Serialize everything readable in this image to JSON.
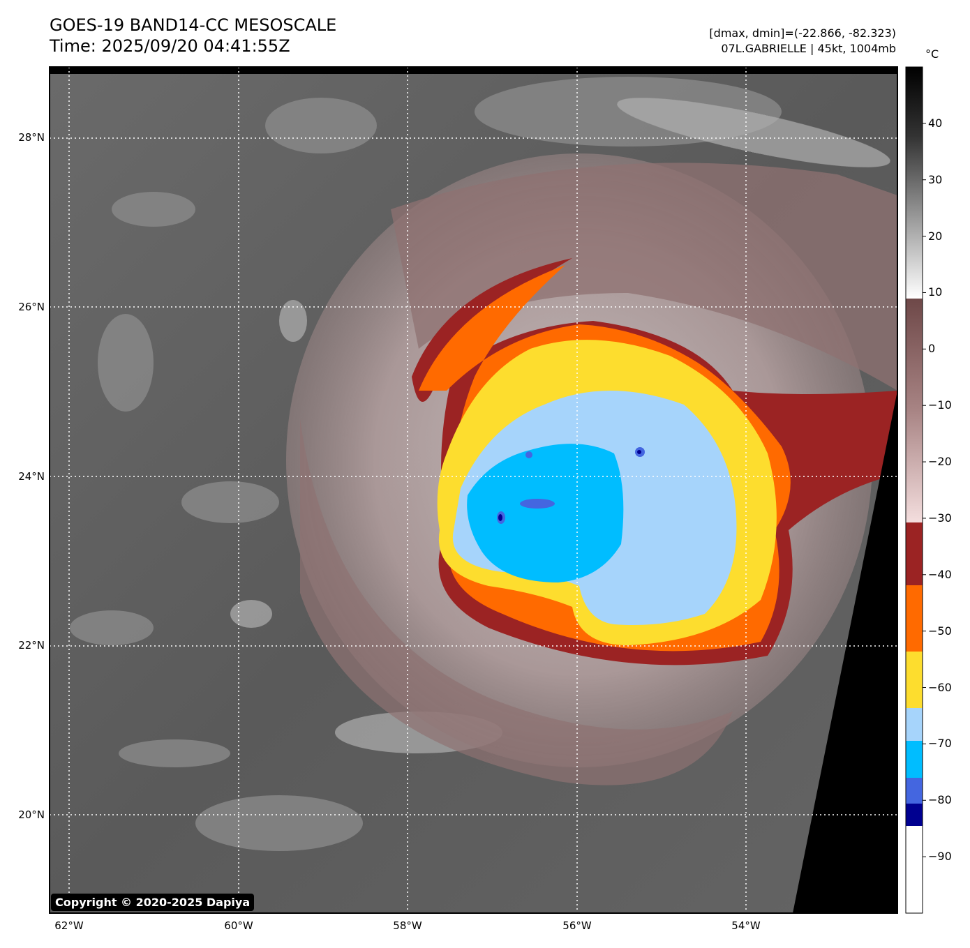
{
  "header": {
    "title_line1": "GOES-19 BAND14-CC MESOSCALE",
    "title_line2": "Time: 2025/09/20 04:41:55Z",
    "info_line1": "[dmax, dmin]=(-22.866, -82.323)",
    "info_line2": "07L.GABRIELLE | 45kt, 1004mb"
  },
  "map": {
    "lat_labels": [
      "28°N",
      "26°N",
      "24°N",
      "22°N",
      "20°N"
    ],
    "lon_labels": [
      "62°W",
      "60°W",
      "58°W",
      "56°W",
      "54°W"
    ],
    "lat_values": [
      28,
      26,
      24,
      22,
      20
    ],
    "lon_values": [
      -62,
      -60,
      -58,
      -56,
      -54
    ],
    "extent": {
      "lon_min": -62.23,
      "lon_max": -52.23,
      "lat_min": 18.8,
      "lat_max": 28.8
    },
    "copyright": "Copyright © 2020-2025 Dapiya"
  },
  "colorbar": {
    "unit": "°C",
    "labels": [
      "40",
      "30",
      "20",
      "10",
      "0",
      "−10",
      "−20",
      "−30",
      "−40",
      "−50",
      "−60",
      "−70",
      "−80",
      "−90"
    ],
    "values": [
      40,
      30,
      20,
      10,
      0,
      -10,
      -20,
      -30,
      -40,
      -50,
      -60,
      -70,
      -80,
      -90
    ],
    "range": [
      -100,
      50
    ],
    "colors": {
      "gray_top": "#000000",
      "gray_bottom": "#ffffff",
      "brown_top": "#6e4848",
      "brown_bottom": "#f4dede",
      "dark_red": "#9b2323",
      "orange": "#ff6a00",
      "yellow": "#fddd2e",
      "light_blue": "#a6d4fb",
      "cyan": "#00bdff",
      "royal_blue": "#4466e0",
      "navy": "#000090",
      "white": "#ffffff"
    }
  }
}
